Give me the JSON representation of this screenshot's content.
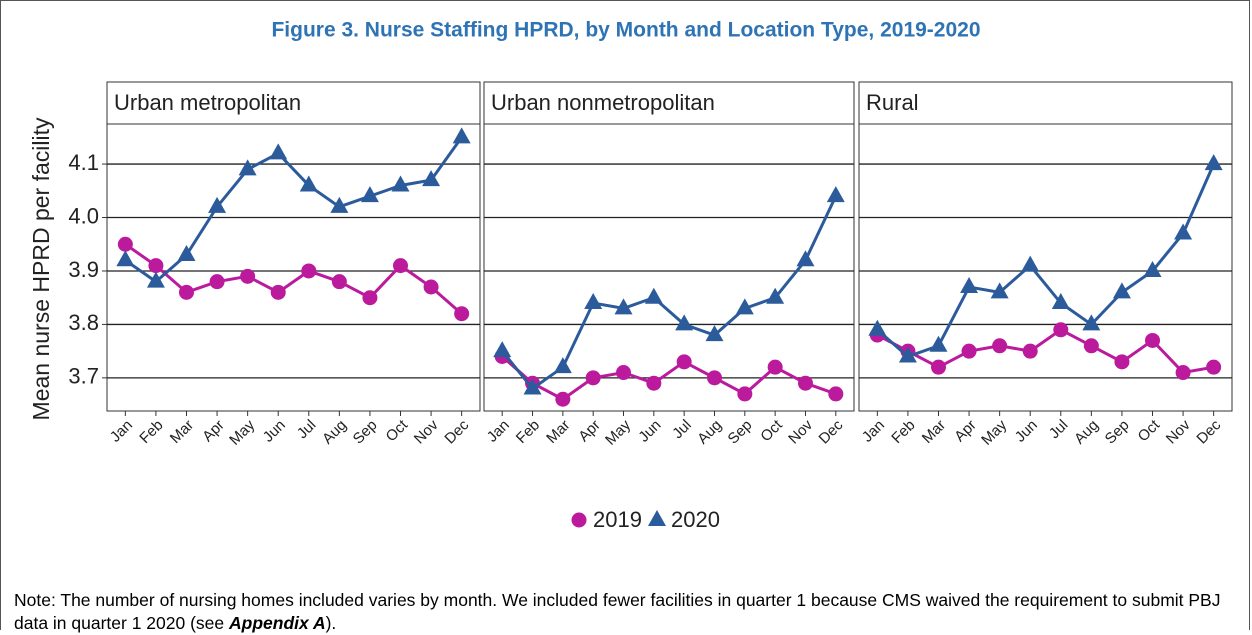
{
  "title": "Figure 3.  Nurse Staffing HPRD, by Month and Location Type, 2019-2020",
  "chart_data": [
    {
      "type": "line",
      "title": "Urban metropolitan",
      "ylabel": "Mean nurse HPRD per facility",
      "categories": [
        "Jan",
        "Feb",
        "Mar",
        "Apr",
        "May",
        "Jun",
        "Jul",
        "Aug",
        "Sep",
        "Oct",
        "Nov",
        "Dec"
      ],
      "series": [
        {
          "name": "2019",
          "color": "#bb1a9c",
          "marker": "circle",
          "values": [
            3.95,
            3.91,
            3.86,
            3.88,
            3.89,
            3.86,
            3.9,
            3.88,
            3.85,
            3.91,
            3.87,
            3.82
          ]
        },
        {
          "name": "2020",
          "color": "#2c5b9c",
          "marker": "triangle",
          "values": [
            3.92,
            3.88,
            3.93,
            4.02,
            4.09,
            4.12,
            4.06,
            4.02,
            4.04,
            4.06,
            4.07,
            4.15
          ]
        }
      ],
      "ylim": [
        3.638,
        4.175
      ],
      "yticks": [
        3.7,
        3.8,
        3.9,
        {
          "value": 4,
          "label": "4.0"
        },
        4.1
      ],
      "grid": true
    },
    {
      "type": "line",
      "title": "Urban nonmetropolitan",
      "categories": [
        "Jan",
        "Feb",
        "Mar",
        "Apr",
        "May",
        "Jun",
        "Jul",
        "Aug",
        "Sep",
        "Oct",
        "Nov",
        "Dec"
      ],
      "series": [
        {
          "color": "#bb1a9c",
          "marker": "circle",
          "values": [
            3.74,
            3.69,
            3.66,
            3.7,
            3.71,
            3.69,
            3.73,
            3.7,
            3.67,
            3.72,
            3.69,
            3.67
          ]
        },
        {
          "color": "#2c5b9c",
          "marker": "triangle",
          "values": [
            3.75,
            3.68,
            3.72,
            3.84,
            3.83,
            3.85,
            3.8,
            3.78,
            3.83,
            3.85,
            3.92,
            4.04
          ]
        }
      ],
      "ylim": [
        3.638,
        4.175
      ],
      "yticks": [
        3.7,
        3.8,
        3.9,
        {
          "value": 4,
          "label": "4.0"
        },
        4.1
      ],
      "grid": true
    },
    {
      "type": "line",
      "title": "Rural",
      "categories": [
        "Jan",
        "Feb",
        "Mar",
        "Apr",
        "May",
        "Jun",
        "Jul",
        "Aug",
        "Sep",
        "Oct",
        "Nov",
        "Dec"
      ],
      "series": [
        {
          "color": "#bb1a9c",
          "marker": "circle",
          "values": [
            3.78,
            3.75,
            3.72,
            3.75,
            3.76,
            3.75,
            3.79,
            3.76,
            3.73,
            3.77,
            3.71,
            3.72
          ]
        },
        {
          "color": "#2c5b9c",
          "marker": "triangle",
          "values": [
            3.79,
            3.74,
            3.76,
            3.87,
            3.86,
            3.91,
            3.84,
            3.8,
            3.86,
            3.9,
            3.97,
            4.1
          ]
        }
      ],
      "ylim": [
        3.638,
        4.175
      ],
      "yticks": [
        3.7,
        3.8,
        3.9,
        {
          "value": 4,
          "label": "4.0"
        },
        4.1
      ],
      "grid": true
    }
  ],
  "note": [
    "Note: The number of nursing homes included varies by month. We included fewer facilities in quarter 1 because CMS waived the requirement to submit PBJ data in quarter 1 2020 (see ",
    "Appendix A",
    ")."
  ]
}
